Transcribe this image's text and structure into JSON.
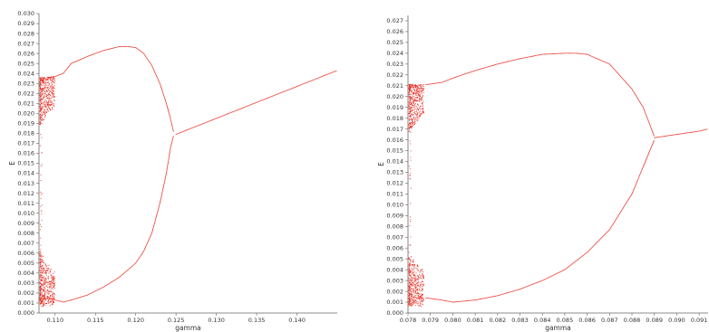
{
  "chart_data": [
    {
      "type": "scatter",
      "xlabel": "gamma",
      "ylabel": "E",
      "xlim": [
        0.108,
        0.145
      ],
      "ylim": [
        0.0,
        0.03
      ],
      "x_ticks": [
        0.11,
        0.115,
        0.12,
        0.125,
        0.13,
        0.135,
        0.14
      ],
      "x_tick_labels": [
        "0.110",
        "0.115",
        "0.120",
        "0.125",
        "0.130",
        "0.135",
        "0.140"
      ],
      "y_ticks": [
        0.0,
        0.001,
        0.002,
        0.003,
        0.004,
        0.005,
        0.006,
        0.007,
        0.008,
        0.009,
        0.01,
        0.011,
        0.012,
        0.013,
        0.014,
        0.015,
        0.016,
        0.017,
        0.018,
        0.019,
        0.02,
        0.021,
        0.022,
        0.023,
        0.024,
        0.025,
        0.026,
        0.027,
        0.028,
        0.029,
        0.03
      ],
      "y_tick_labels": [
        "0.000",
        "0.001",
        "0.002",
        "0.003",
        "0.004",
        "0.005",
        "0.006",
        "0.007",
        "0.008",
        "0.009",
        "0.010",
        "0.011",
        "0.012",
        "0.013",
        "0.014",
        "0.015",
        "0.016",
        "0.017",
        "0.018",
        "0.019",
        "0.020",
        "0.021",
        "0.022",
        "0.023",
        "0.024",
        "0.025",
        "0.026",
        "0.027",
        "0.028",
        "0.029",
        "0.030"
      ],
      "grid": false,
      "point_color": "#e8281e",
      "series": [
        {
          "x": [
            0.109,
            0.11,
            0.111,
            0.112,
            0.114,
            0.116,
            0.118,
            0.119,
            0.12,
            0.121,
            0.122,
            0.123,
            0.1238,
            0.1243,
            0.1247
          ],
          "y": [
            0.0236,
            0.0237,
            0.024,
            0.025,
            0.0257,
            0.0263,
            0.0267,
            0.0267,
            0.0266,
            0.026,
            0.0248,
            0.023,
            0.021,
            0.0195,
            0.0181
          ]
        },
        {
          "x": [
            0.109,
            0.11,
            0.111,
            0.112,
            0.114,
            0.116,
            0.118,
            0.12,
            0.121,
            0.122,
            0.123,
            0.1238,
            0.1243,
            0.1247
          ],
          "y": [
            0.0015,
            0.0013,
            0.0011,
            0.0013,
            0.0018,
            0.0026,
            0.0036,
            0.005,
            0.0062,
            0.008,
            0.011,
            0.014,
            0.0165,
            0.0178
          ]
        },
        {
          "x": [
            0.125,
            0.13,
            0.135,
            0.14,
            0.145
          ],
          "y": [
            0.0179,
            0.0195,
            0.0211,
            0.0227,
            0.0243
          ]
        }
      ]
    },
    {
      "type": "scatter",
      "xlabel": "gamma",
      "ylabel": "E",
      "xlim": [
        0.078,
        0.0914
      ],
      "ylim": [
        0.0,
        0.0275
      ],
      "x_ticks": [
        0.078,
        0.079,
        0.08,
        0.081,
        0.082,
        0.083,
        0.084,
        0.085,
        0.086,
        0.087,
        0.088,
        0.089,
        0.09,
        0.091
      ],
      "x_tick_labels": [
        "0.078",
        "0.079",
        "0.080",
        "0.081",
        "0.082",
        "0.083",
        "0.084",
        "0.085",
        "0.086",
        "0.087",
        "0.088",
        "0.089",
        "0.090",
        "0.091"
      ],
      "y_ticks": [
        0.0,
        0.001,
        0.002,
        0.003,
        0.004,
        0.005,
        0.006,
        0.007,
        0.008,
        0.009,
        0.01,
        0.011,
        0.012,
        0.013,
        0.014,
        0.015,
        0.016,
        0.017,
        0.018,
        0.019,
        0.02,
        0.021,
        0.022,
        0.023,
        0.024,
        0.025,
        0.026,
        0.027
      ],
      "y_tick_labels": [
        "0.000",
        "0.001",
        "0.002",
        "0.003",
        "0.004",
        "0.005",
        "0.006",
        "0.007",
        "0.008",
        "0.009",
        "0.010",
        "0.011",
        "0.012",
        "0.013",
        "0.014",
        "0.015",
        "0.016",
        "0.017",
        "0.018",
        "0.019",
        "0.020",
        "0.021",
        "0.022",
        "0.023",
        "0.024",
        "0.025",
        "0.026",
        "0.027"
      ],
      "grid": false,
      "point_color": "#e8281e",
      "series": [
        {
          "x": [
            0.0788,
            0.0795,
            0.08,
            0.081,
            0.082,
            0.083,
            0.084,
            0.085,
            0.0855,
            0.086,
            0.087,
            0.088,
            0.0885,
            0.0888,
            0.089
          ],
          "y": [
            0.0211,
            0.0213,
            0.0217,
            0.0224,
            0.023,
            0.0235,
            0.0239,
            0.024,
            0.024,
            0.0239,
            0.023,
            0.0207,
            0.019,
            0.0174,
            0.0163
          ]
        },
        {
          "x": [
            0.0788,
            0.0795,
            0.08,
            0.081,
            0.082,
            0.083,
            0.084,
            0.085,
            0.086,
            0.087,
            0.088,
            0.0885,
            0.0888,
            0.089
          ],
          "y": [
            0.0014,
            0.0012,
            0.001,
            0.0012,
            0.0016,
            0.0022,
            0.003,
            0.004,
            0.0056,
            0.0077,
            0.011,
            0.0135,
            0.015,
            0.016
          ]
        },
        {
          "x": [
            0.089,
            0.09,
            0.091,
            0.0914
          ],
          "y": [
            0.0162,
            0.0165,
            0.0168,
            0.017
          ]
        }
      ]
    }
  ]
}
